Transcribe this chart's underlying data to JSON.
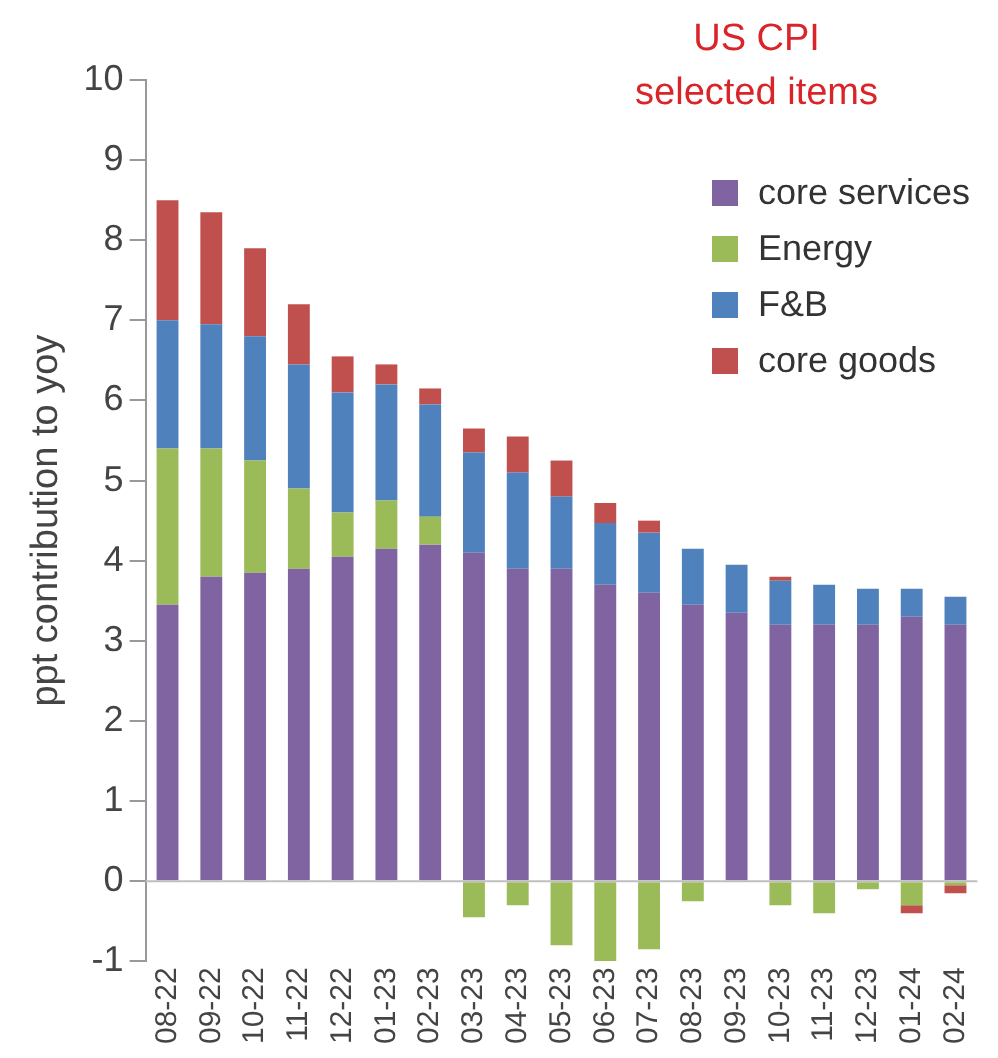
{
  "chart_data": {
    "type": "bar",
    "title": "US CPI\nselected items",
    "ylabel": "ppt contribution to yoy",
    "categories": [
      "08-22",
      "09-22",
      "10-22",
      "11-22",
      "12-22",
      "01-23",
      "02-23",
      "03-23",
      "04-23",
      "05-23",
      "06-23",
      "07-23",
      "08-23",
      "09-23",
      "10-23",
      "11-23",
      "12-23",
      "01-24",
      "02-24"
    ],
    "series": [
      {
        "name": "core services",
        "color": "#8064a2",
        "values": [
          3.45,
          3.8,
          3.85,
          3.9,
          4.05,
          4.15,
          4.2,
          4.1,
          3.9,
          3.9,
          3.7,
          3.6,
          3.45,
          3.35,
          3.2,
          3.2,
          3.2,
          3.3,
          3.2
        ]
      },
      {
        "name": "Energy",
        "color": "#9bbb59",
        "values": [
          1.95,
          1.6,
          1.4,
          1.0,
          0.55,
          0.6,
          0.35,
          -0.45,
          -0.3,
          -0.8,
          -1.0,
          -0.85,
          -0.25,
          0,
          -0.3,
          -0.4,
          -0.1,
          -0.3,
          -0.05
        ]
      },
      {
        "name": "F&B",
        "color": "#4f81bd",
        "values": [
          1.6,
          1.55,
          1.55,
          1.55,
          1.5,
          1.45,
          1.4,
          1.25,
          1.2,
          0.9,
          0.77,
          0.75,
          0.7,
          0.6,
          0.55,
          0.5,
          0.45,
          0.35,
          0.35
        ]
      },
      {
        "name": "core goods",
        "color": "#c0504d",
        "values": [
          1.5,
          1.4,
          1.1,
          0.75,
          0.45,
          0.25,
          0.2,
          0.3,
          0.45,
          0.45,
          0.25,
          0.15,
          0,
          0,
          0.05,
          0,
          0,
          -0.1,
          -0.1
        ]
      }
    ],
    "stacked": true,
    "ylim": [
      -1,
      10
    ],
    "yticks": [
      -1,
      0,
      1,
      2,
      3,
      4,
      5,
      6,
      7,
      8,
      9,
      10
    ],
    "grid": false,
    "ref_lines": [
      {
        "axis": "y",
        "value": 0,
        "color": "#bfbfbf"
      }
    ],
    "legend": "top right"
  }
}
